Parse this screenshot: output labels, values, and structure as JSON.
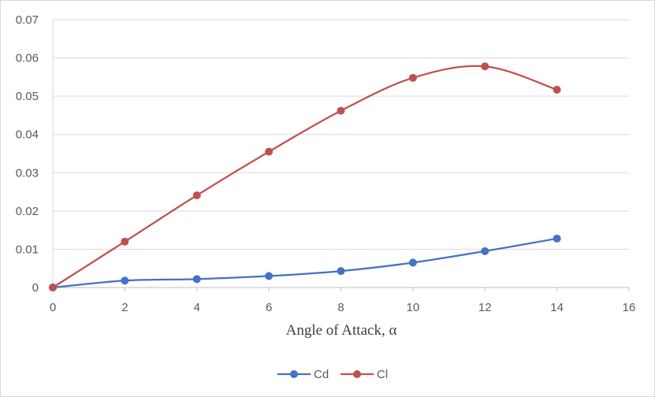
{
  "chart_data": {
    "type": "line",
    "xlabel": "Angle of Attack, α",
    "ylabel": "",
    "xlim": [
      0,
      16
    ],
    "ylim": [
      0,
      0.07
    ],
    "x_ticks": [
      "0",
      "2",
      "4",
      "6",
      "8",
      "10",
      "12",
      "14",
      "16"
    ],
    "y_ticks": [
      "0",
      "0.01",
      "0.02",
      "0.03",
      "0.04",
      "0.05",
      "0.06",
      "0.07"
    ],
    "grid": "horizontal",
    "smooth": true,
    "legend_position": "bottom",
    "x": [
      0,
      2,
      4,
      6,
      8,
      10,
      12,
      14
    ],
    "series": [
      {
        "name": "Cd",
        "color": "#4472c4",
        "values": [
          0,
          0.0018,
          0.0022,
          0.003,
          0.0043,
          0.0065,
          0.0095,
          0.0128
        ]
      },
      {
        "name": "Cl",
        "color": "#c0504d",
        "values": [
          0,
          0.012,
          0.0241,
          0.0355,
          0.0462,
          0.0548,
          0.0578,
          0.0517
        ]
      }
    ]
  }
}
